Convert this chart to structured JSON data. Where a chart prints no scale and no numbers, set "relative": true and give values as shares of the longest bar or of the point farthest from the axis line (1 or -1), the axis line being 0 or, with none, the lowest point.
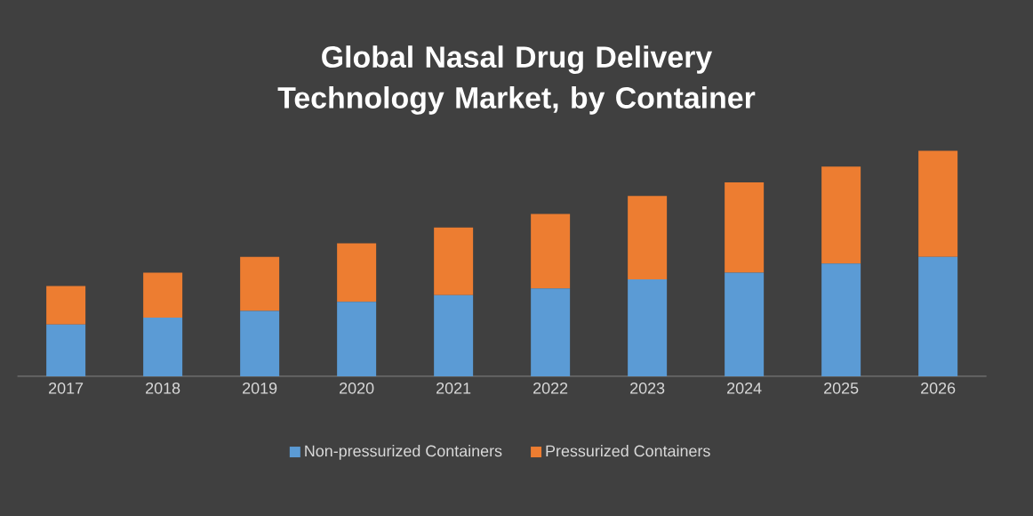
{
  "chart_data": {
    "type": "bar",
    "title": "Global Nasal Drug Delivery Technology Market, by Container",
    "categories": [
      "2017",
      "2018",
      "2019",
      "2020",
      "2021",
      "2022",
      "2023",
      "2024",
      "2025",
      "2026"
    ],
    "stacked": true,
    "relative": true,
    "legend": "bottom",
    "series": [
      {
        "name": "Non-pressurized Containers",
        "color": "#5b9bd5",
        "values": [
          0.23,
          0.26,
          0.29,
          0.33,
          0.36,
          0.39,
          0.43,
          0.46,
          0.5,
          0.53
        ]
      },
      {
        "name": "Pressurized Containers",
        "color": "#ed7d31",
        "values": [
          0.17,
          0.2,
          0.24,
          0.26,
          0.3,
          0.33,
          0.37,
          0.4,
          0.43,
          0.47
        ]
      }
    ]
  }
}
